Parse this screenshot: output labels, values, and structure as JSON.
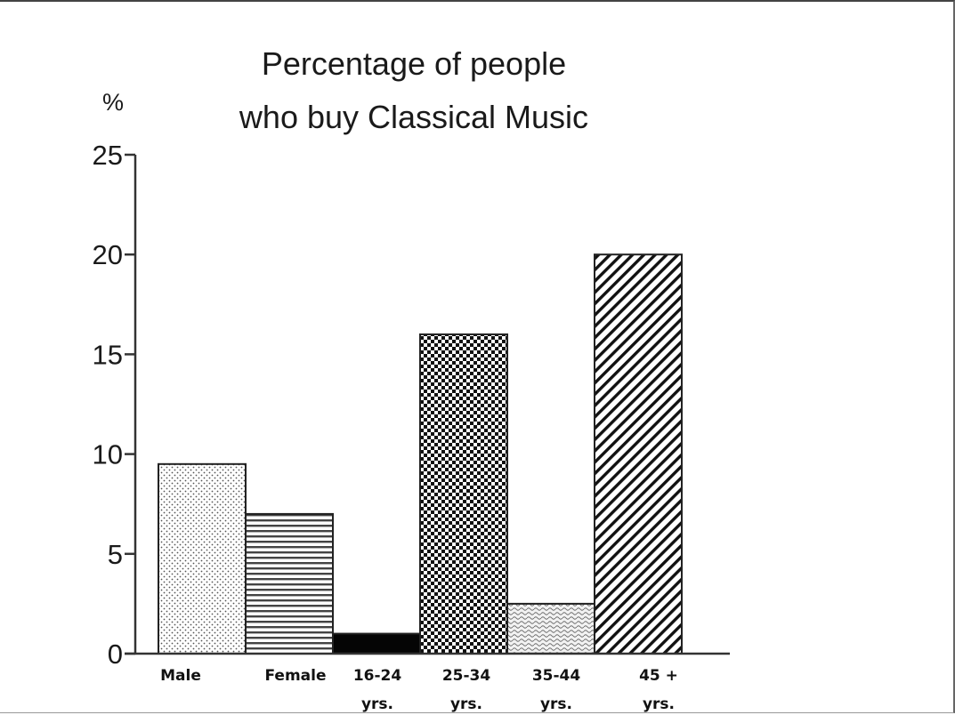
{
  "chart_data": {
    "type": "bar",
    "title": [
      "Percentage of people",
      "who buy Classical Music"
    ],
    "ylabel": "%",
    "xlabel": "",
    "ylim": [
      0,
      25
    ],
    "yticks": [
      0,
      5,
      10,
      15,
      20,
      25
    ],
    "grid": false,
    "legend": "none",
    "categories": [
      [
        "Male"
      ],
      [
        "Female"
      ],
      [
        "16-24",
        "yrs."
      ],
      [
        "25-34",
        "yrs."
      ],
      [
        "35-44",
        "yrs."
      ],
      [
        "45 +",
        "yrs."
      ]
    ],
    "values": [
      9.5,
      7,
      1,
      16,
      2.5,
      20
    ],
    "patterns": [
      "dots",
      "horizontal-lines",
      "solid-black",
      "checker",
      "waves",
      "diagonal-hatch"
    ]
  },
  "colors": {
    "axis": "#333333",
    "bar_outline": "#222222",
    "bar_fill_background": "#ffffff"
  }
}
